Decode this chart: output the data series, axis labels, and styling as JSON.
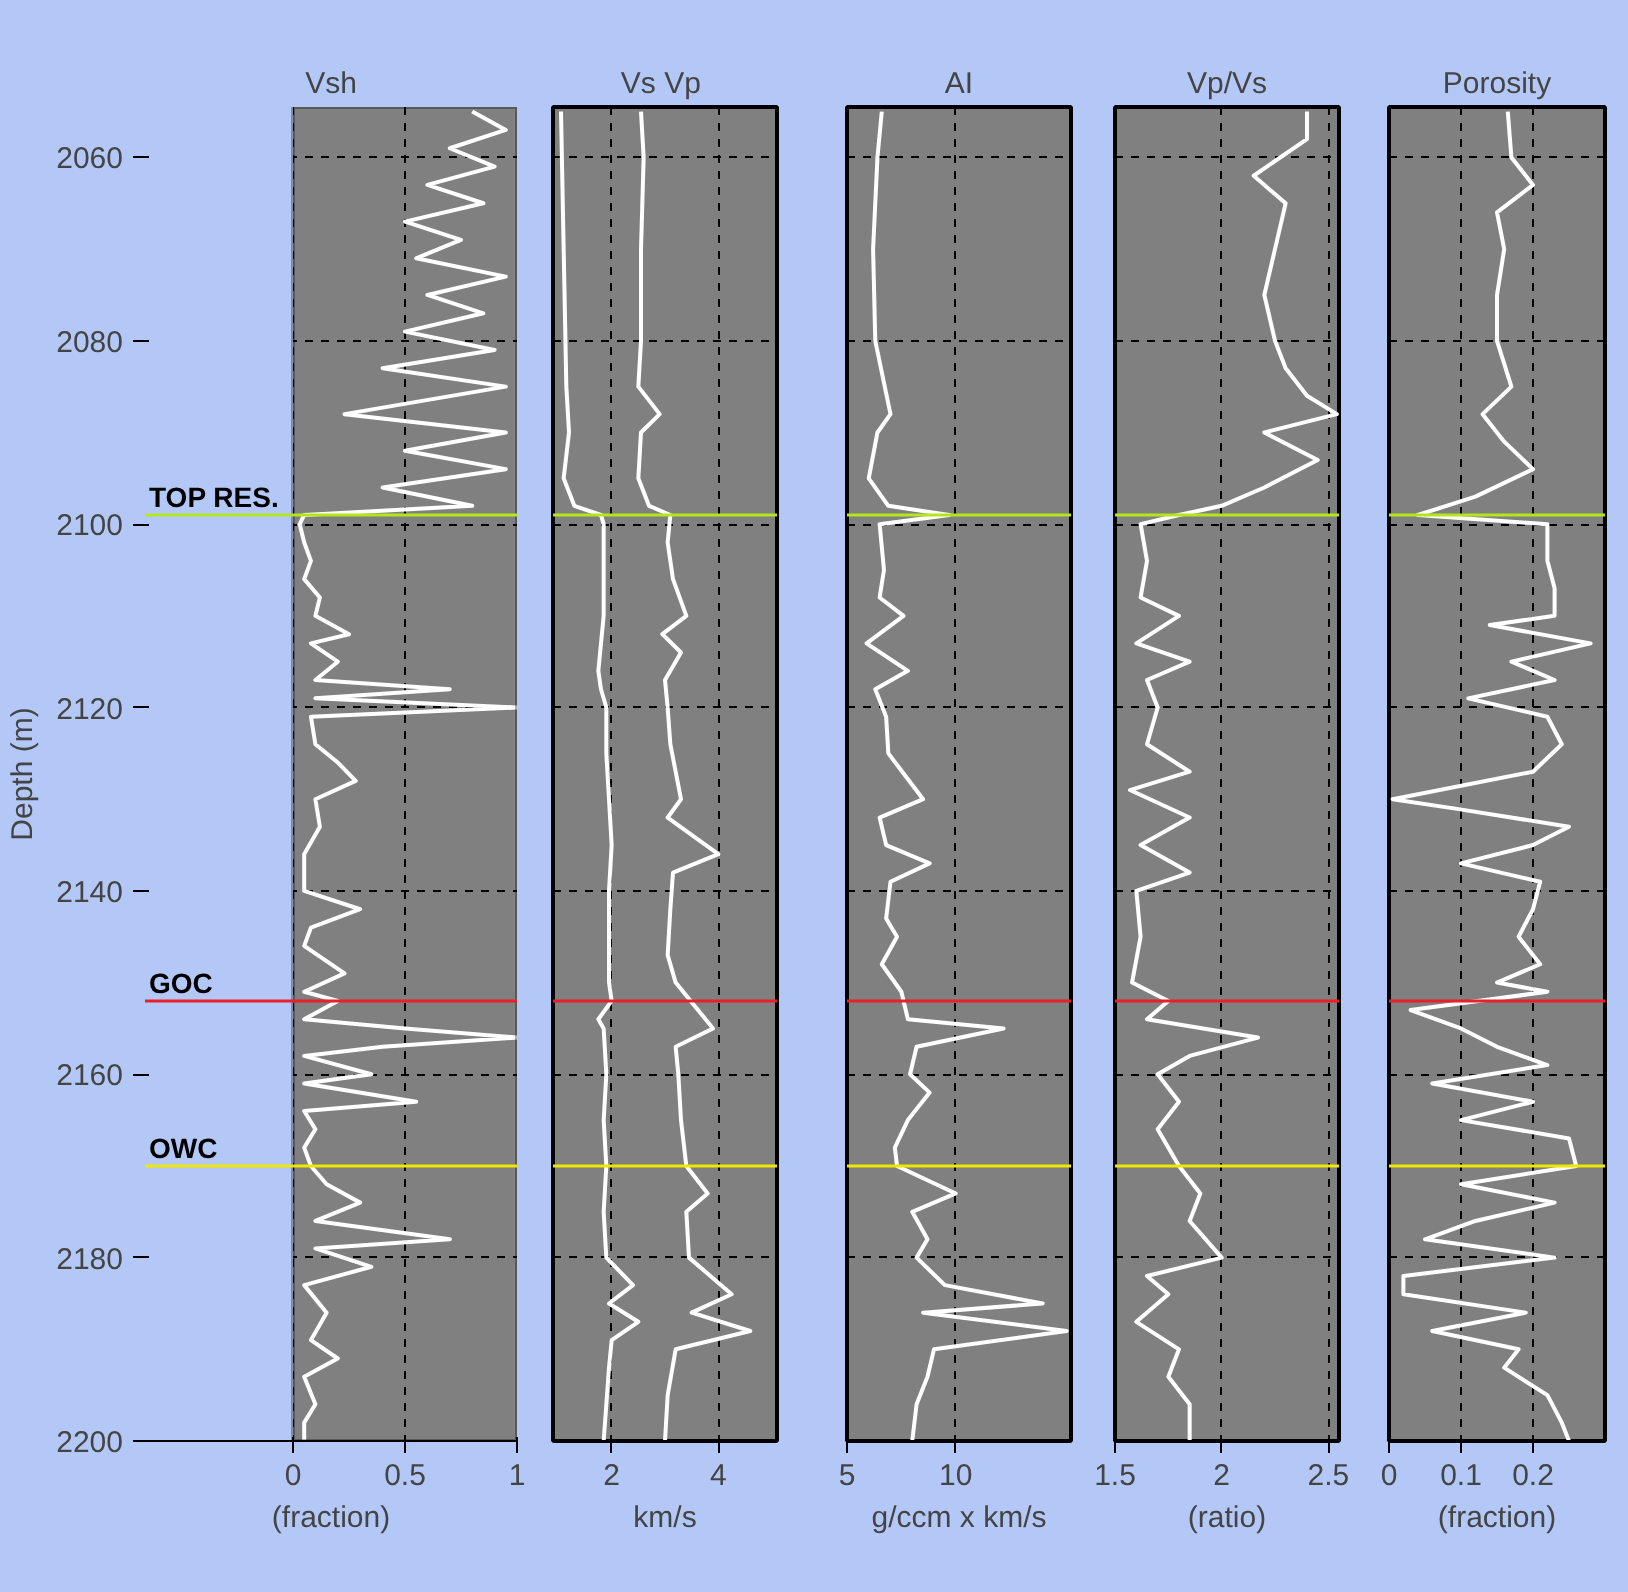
{
  "chart_data": [
    {
      "type": "line",
      "title": "Vsh",
      "xlabel": "(fraction)",
      "ylabel": "Depth (m)",
      "xlim": [
        0,
        1
      ],
      "xticks": [
        0,
        0.5,
        1
      ],
      "ylim": [
        2200,
        2054.5
      ],
      "yticks": [
        2060,
        2080,
        2100,
        2120,
        2140,
        2160,
        2180,
        2200
      ],
      "grid": true,
      "ref_lines": [
        {
          "axis": "y",
          "value": 2099,
          "label": "TOP RES.",
          "color": "#b4e61e"
        },
        {
          "axis": "y",
          "value": 2152,
          "label": "GOC",
          "color": "#e8202a"
        },
        {
          "axis": "y",
          "value": 2170,
          "label": "OWC",
          "color": "#f0e600"
        }
      ],
      "series": [
        {
          "color": "#ffffff",
          "x": [
            0.8,
            0.95,
            0.7,
            0.9,
            0.6,
            0.85,
            0.5,
            0.75,
            0.55,
            0.95,
            0.6,
            0.85,
            0.5,
            0.9,
            0.4,
            0.95,
            0.23,
            0.95,
            0.5,
            0.95,
            0.4,
            0.8,
            0.05,
            0.03,
            0.05,
            0.08,
            0.05,
            0.12,
            0.1,
            0.25,
            0.08,
            0.2,
            0.1,
            0.7,
            0.1,
            1.0,
            0.08,
            0.1,
            0.2,
            0.28,
            0.1,
            0.12,
            0.05,
            0.05,
            0.3,
            0.08,
            0.05,
            0.23,
            0.05,
            0.2,
            0.05,
            0.5,
            1.0,
            0.4,
            0.05,
            0.35,
            0.05,
            0.55,
            0.05,
            0.1,
            0.05,
            0.08,
            0.15,
            0.3,
            0.1,
            0.7,
            0.1,
            0.35,
            0.05,
            0.15,
            0.08,
            0.2,
            0.05,
            0.1,
            0.05,
            0.05
          ],
          "values": [
            2055,
            2057,
            2059,
            2061,
            2063,
            2065,
            2067,
            2069,
            2071,
            2073,
            2075,
            2077,
            2079,
            2081,
            2083,
            2085,
            2088,
            2090,
            2092,
            2094,
            2096,
            2098,
            2099,
            2100,
            2102,
            2104,
            2106,
            2108,
            2110,
            2112,
            2113,
            2115,
            2117,
            2118,
            2119,
            2120,
            2121,
            2124,
            2126,
            2128,
            2130,
            2133,
            2136,
            2140,
            2142,
            2144,
            2146,
            2149,
            2151,
            2152,
            2154,
            2155,
            2156,
            2157,
            2158,
            2160,
            2161,
            2163,
            2164,
            2166,
            2168,
            2170,
            2172,
            2174,
            2176,
            2178,
            2179,
            2181,
            2183,
            2186,
            2189,
            2191,
            2193,
            2196,
            2198,
            2200
          ]
        }
      ]
    },
    {
      "type": "line",
      "title": "Vs  Vp",
      "xlabel": "km/s",
      "xlim": [
        0.9,
        5.1
      ],
      "xticks": [
        2,
        4
      ],
      "ylim": [
        2200,
        2054.5
      ],
      "yticks": [
        2060,
        2080,
        2100,
        2120,
        2140,
        2160,
        2180,
        2200
      ],
      "grid": true,
      "tick_labels": "x",
      "ref_lines": [
        {
          "axis": "y",
          "value": 2099,
          "color": "#b4e61e"
        },
        {
          "axis": "y",
          "value": 2152,
          "color": "#e8202a"
        },
        {
          "axis": "y",
          "value": 2170,
          "color": "#f0e600"
        }
      ],
      "series": [
        {
          "color": "#ffffff",
          "x": [
            1.05,
            1.1,
            1.15,
            1.2,
            1.1,
            1.3,
            1.8,
            1.85,
            1.85,
            1.75,
            1.8,
            1.9,
            1.9,
            1.95,
            2.0,
            1.95,
            1.95,
            1.95,
            2.0,
            1.75,
            1.85,
            1.9,
            1.85,
            1.9,
            1.85,
            1.9,
            2.4,
            1.95,
            2.5,
            2.0,
            1.95,
            1.9,
            1.85
          ],
          "values": [
            2055,
            2070,
            2085,
            2090,
            2095,
            2098,
            2099,
            2100,
            2110,
            2116,
            2118,
            2120,
            2125,
            2130,
            2135,
            2140,
            2145,
            2150,
            2152,
            2154,
            2155,
            2160,
            2165,
            2170,
            2175,
            2180,
            2183,
            2185,
            2187,
            2189,
            2192,
            2196,
            2200
          ]
        },
        {
          "color": "#ffffff",
          "x": [
            2.55,
            2.6,
            2.55,
            2.55,
            2.5,
            2.9,
            2.55,
            2.5,
            2.7,
            3.1,
            3.05,
            3.15,
            3.4,
            2.95,
            3.3,
            3.0,
            3.05,
            3.1,
            3.3,
            3.05,
            4.0,
            3.15,
            3.1,
            3.05,
            3.2,
            3.9,
            3.2,
            3.25,
            3.3,
            3.4,
            3.8,
            3.4,
            3.45,
            4.25,
            3.5,
            4.6,
            3.2,
            3.05,
            3.0
          ],
          "values": [
            2055,
            2060,
            2070,
            2080,
            2085,
            2088,
            2090,
            2095,
            2098,
            2099,
            2102,
            2106,
            2110,
            2112,
            2114,
            2117,
            2120,
            2124,
            2130,
            2132,
            2136,
            2138,
            2142,
            2147,
            2150,
            2155,
            2157,
            2160,
            2165,
            2170,
            2173,
            2175,
            2180,
            2184,
            2186,
            2188,
            2190,
            2195,
            2200
          ]
        }
      ]
    },
    {
      "type": "line",
      "title": "AI",
      "xlabel": "g/ccm x km/s",
      "xlim": [
        5,
        15.3
      ],
      "xticks": [
        5,
        10
      ],
      "ylim": [
        2200,
        2054.5
      ],
      "yticks": [
        2060,
        2080,
        2100,
        2120,
        2140,
        2160,
        2180,
        2200
      ],
      "grid": true,
      "tick_labels": "x",
      "ref_lines": [
        {
          "axis": "y",
          "value": 2099,
          "color": "#b4e61e"
        },
        {
          "axis": "y",
          "value": 2152,
          "color": "#e8202a"
        },
        {
          "axis": "y",
          "value": 2170,
          "color": "#f0e600"
        }
      ],
      "series": [
        {
          "color": "#ffffff",
          "x": [
            6.6,
            6.4,
            6.2,
            6.3,
            7.0,
            6.4,
            6.0,
            6.9,
            9.7,
            6.5,
            6.7,
            6.5,
            7.6,
            5.9,
            7.8,
            6.3,
            6.8,
            6.9,
            8.5,
            6.5,
            6.8,
            8.8,
            7.0,
            6.8,
            7.3,
            6.6,
            7.5,
            7.8,
            12.2,
            8.2,
            7.9,
            8.8,
            7.8,
            7.2,
            7.3,
            10.0,
            8.0,
            8.7,
            8.2,
            9.5,
            14.0,
            8.5,
            15.1,
            9.0,
            8.7,
            8.2,
            8.0
          ],
          "values": [
            2055,
            2060,
            2070,
            2080,
            2088,
            2090,
            2095,
            2098,
            2099,
            2100,
            2105,
            2108,
            2110,
            2113,
            2116,
            2118,
            2121,
            2125,
            2130,
            2132,
            2135,
            2137,
            2139,
            2143,
            2145,
            2148,
            2151,
            2154,
            2155,
            2157,
            2160,
            2162,
            2165,
            2168,
            2170,
            2173,
            2175,
            2178,
            2180,
            2183,
            2185,
            2186,
            2188,
            2190,
            2193,
            2196,
            2200
          ]
        }
      ]
    },
    {
      "type": "line",
      "title": "Vp/Vs",
      "xlabel": "(ratio)",
      "xlim": [
        1.5,
        2.55
      ],
      "xticks": [
        1.5,
        2,
        2.5
      ],
      "ylim": [
        2200,
        2054.5
      ],
      "yticks": [
        2060,
        2080,
        2100,
        2120,
        2140,
        2160,
        2180,
        2200
      ],
      "grid": true,
      "tick_labels": "x",
      "ref_lines": [
        {
          "axis": "y",
          "value": 2099,
          "color": "#b4e61e"
        },
        {
          "axis": "y",
          "value": 2152,
          "color": "#e8202a"
        },
        {
          "axis": "y",
          "value": 2170,
          "color": "#f0e600"
        }
      ],
      "series": [
        {
          "color": "#ffffff",
          "x": [
            2.4,
            2.4,
            2.15,
            2.3,
            2.25,
            2.2,
            2.25,
            2.3,
            2.4,
            2.54,
            2.2,
            2.45,
            2.2,
            2.0,
            1.8,
            1.62,
            1.65,
            1.62,
            1.8,
            1.6,
            1.85,
            1.65,
            1.7,
            1.65,
            1.85,
            1.57,
            1.85,
            1.62,
            1.85,
            1.6,
            1.62,
            1.58,
            1.75,
            1.65,
            2.17,
            1.85,
            1.7,
            1.8,
            1.7,
            1.8,
            1.9,
            1.85,
            2.0,
            1.65,
            1.75,
            1.6,
            1.8,
            1.75,
            1.85,
            1.85
          ],
          "values": [
            2055,
            2058,
            2062,
            2065,
            2070,
            2075,
            2080,
            2083,
            2086,
            2088,
            2090,
            2093,
            2096,
            2098,
            2099,
            2100,
            2104,
            2108,
            2110,
            2113,
            2115,
            2117,
            2120,
            2124,
            2127,
            2129,
            2132,
            2135,
            2138,
            2140,
            2145,
            2150,
            2152,
            2154,
            2156,
            2158,
            2160,
            2163,
            2166,
            2170,
            2173,
            2176,
            2180,
            2182,
            2184,
            2187,
            2190,
            2193,
            2196,
            2200
          ]
        }
      ]
    },
    {
      "type": "line",
      "title": "Porosity",
      "xlabel": "(fraction)",
      "xlim": [
        0,
        0.3
      ],
      "xticks": [
        0,
        0.1,
        0.2
      ],
      "ylim": [
        2200,
        2054.5
      ],
      "yticks": [
        2060,
        2080,
        2100,
        2120,
        2140,
        2160,
        2180,
        2200
      ],
      "grid": true,
      "tick_labels": "x",
      "ref_lines": [
        {
          "axis": "y",
          "value": 2099,
          "color": "#b4e61e"
        },
        {
          "axis": "y",
          "value": 2152,
          "color": "#e8202a"
        },
        {
          "axis": "y",
          "value": 2170,
          "color": "#f0e600"
        }
      ],
      "series": [
        {
          "color": "#ffffff",
          "x": [
            0.165,
            0.17,
            0.2,
            0.15,
            0.16,
            0.15,
            0.15,
            0.17,
            0.13,
            0.16,
            0.2,
            0.12,
            0.04,
            0.22,
            0.22,
            0.23,
            0.23,
            0.14,
            0.28,
            0.17,
            0.23,
            0.11,
            0.22,
            0.24,
            0.2,
            0.005,
            0.09,
            0.25,
            0.2,
            0.1,
            0.21,
            0.2,
            0.18,
            0.21,
            0.15,
            0.22,
            0.03,
            0.1,
            0.15,
            0.22,
            0.06,
            0.2,
            0.1,
            0.25,
            0.26,
            0.1,
            0.23,
            0.12,
            0.05,
            0.23,
            0.02,
            0.02,
            0.19,
            0.06,
            0.18,
            0.16,
            0.22,
            0.24,
            0.25
          ],
          "values": [
            2055,
            2060,
            2063,
            2066,
            2070,
            2075,
            2080,
            2085,
            2088,
            2091,
            2094,
            2097,
            2099,
            2100,
            2104,
            2107,
            2110,
            2111,
            2113,
            2115,
            2117,
            2119,
            2121,
            2124,
            2127,
            2130,
            2131,
            2133,
            2135,
            2137,
            2139,
            2142,
            2145,
            2148,
            2150,
            2151,
            2153,
            2155,
            2157,
            2159,
            2161,
            2163,
            2165,
            2167,
            2170,
            2172,
            2174,
            2176,
            2178,
            2180,
            2182,
            2184,
            2186,
            2188,
            2190,
            2192,
            2195,
            2198,
            2200
          ]
        }
      ]
    }
  ]
}
